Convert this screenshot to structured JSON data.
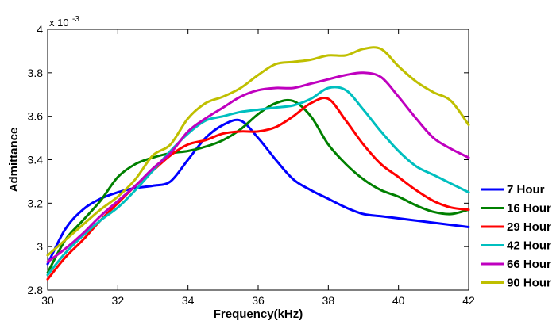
{
  "chart_data": {
    "type": "line",
    "xlabel": "Frequency(kHz)",
    "ylabel": "Admittance",
    "xlim": [
      30,
      42
    ],
    "ylim": [
      2.8,
      4.0
    ],
    "y_multiplier_label": "x 10",
    "y_multiplier_exp": "-3",
    "x_ticks": [
      30,
      32,
      34,
      36,
      38,
      40,
      42
    ],
    "x_tick_labels": [
      "30",
      "32",
      "34",
      "36",
      "38",
      "40",
      "42"
    ],
    "y_ticks": [
      2.8,
      3.0,
      3.2,
      3.4,
      3.6,
      3.8,
      4.0
    ],
    "y_tick_labels": [
      "2.8",
      "3",
      "3.2",
      "3.4",
      "3.6",
      "3.8",
      "4"
    ],
    "grid": false,
    "legend_position": "right-outside",
    "x": [
      30,
      30.5,
      31,
      31.5,
      32,
      32.5,
      33,
      33.5,
      34,
      34.5,
      35,
      35.5,
      36,
      36.5,
      37,
      37.5,
      38,
      38.5,
      39,
      39.5,
      40,
      40.5,
      41,
      41.5,
      42
    ],
    "series": [
      {
        "name": "7 Hour",
        "color": "#0000ff",
        "values": [
          2.92,
          3.08,
          3.17,
          3.22,
          3.25,
          3.27,
          3.28,
          3.3,
          3.4,
          3.5,
          3.56,
          3.58,
          3.5,
          3.4,
          3.31,
          3.26,
          3.22,
          3.18,
          3.15,
          3.14,
          3.13,
          3.12,
          3.11,
          3.1,
          3.09
        ]
      },
      {
        "name": "16 Hour",
        "color": "#008000",
        "values": [
          2.88,
          3.03,
          3.12,
          3.21,
          3.32,
          3.38,
          3.41,
          3.43,
          3.44,
          3.46,
          3.49,
          3.54,
          3.61,
          3.66,
          3.67,
          3.6,
          3.47,
          3.38,
          3.31,
          3.26,
          3.23,
          3.19,
          3.16,
          3.15,
          3.17
        ]
      },
      {
        "name": "29 Hour",
        "color": "#ff0000",
        "values": [
          2.85,
          2.95,
          3.03,
          3.12,
          3.2,
          3.28,
          3.35,
          3.42,
          3.47,
          3.49,
          3.52,
          3.53,
          3.53,
          3.55,
          3.6,
          3.66,
          3.68,
          3.58,
          3.47,
          3.38,
          3.32,
          3.26,
          3.21,
          3.18,
          3.17
        ]
      },
      {
        "name": "42 Hour",
        "color": "#00bfbf",
        "values": [
          2.87,
          2.97,
          3.05,
          3.12,
          3.18,
          3.26,
          3.35,
          3.44,
          3.52,
          3.58,
          3.6,
          3.62,
          3.63,
          3.64,
          3.65,
          3.68,
          3.73,
          3.72,
          3.63,
          3.53,
          3.44,
          3.37,
          3.33,
          3.29,
          3.25
        ]
      },
      {
        "name": "66 Hour",
        "color": "#bf00bf",
        "values": [
          2.93,
          2.99,
          3.06,
          3.14,
          3.21,
          3.28,
          3.36,
          3.43,
          3.53,
          3.59,
          3.64,
          3.69,
          3.72,
          3.73,
          3.73,
          3.75,
          3.77,
          3.79,
          3.8,
          3.78,
          3.69,
          3.59,
          3.5,
          3.45,
          3.41
        ]
      },
      {
        "name": "90 Hour",
        "color": "#bfbf00",
        "values": [
          2.96,
          3.03,
          3.1,
          3.17,
          3.23,
          3.31,
          3.42,
          3.47,
          3.59,
          3.66,
          3.69,
          3.73,
          3.79,
          3.84,
          3.85,
          3.86,
          3.88,
          3.88,
          3.91,
          3.91,
          3.83,
          3.76,
          3.71,
          3.67,
          3.56
        ]
      }
    ]
  }
}
